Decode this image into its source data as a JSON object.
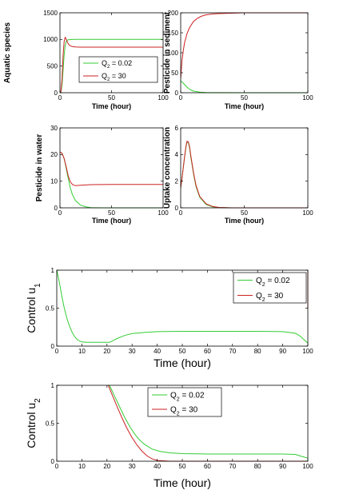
{
  "chart_data": [
    {
      "type": "line",
      "xlabel": "Time (hour)",
      "ylabel": "Aquatic species",
      "xlim": [
        0,
        100
      ],
      "ylim": [
        0,
        1500
      ],
      "xticks": [
        0,
        50,
        100
      ],
      "yticks": [
        0,
        500,
        1000,
        1500
      ],
      "xticklabels": [
        "0",
        "50",
        "100"
      ],
      "yticklabels": [
        "0",
        "500",
        "1000",
        "1500"
      ],
      "grid": false,
      "legend": {
        "placement": "center-right",
        "entries": [
          {
            "base": "Q",
            "sub": "2",
            "rest": " = 0.02",
            "color": "#33cc33"
          },
          {
            "base": "Q",
            "sub": "2",
            "rest": " = 30",
            "color": "#cc2222"
          }
        ]
      },
      "series": [
        {
          "color": "#33cc33",
          "x": [
            0,
            1,
            2,
            3,
            4,
            5,
            6,
            7,
            8,
            9,
            10,
            12,
            15,
            20,
            30,
            50,
            100
          ],
          "y": [
            0,
            20,
            150,
            420,
            700,
            880,
            960,
            985,
            993,
            996,
            998,
            999,
            1000,
            1000,
            1000,
            1000,
            1000
          ]
        },
        {
          "color": "#cc2222",
          "x": [
            0,
            1,
            2,
            3,
            4,
            5,
            6,
            7,
            8,
            9,
            10,
            12,
            15,
            20,
            30,
            50,
            100
          ],
          "y": [
            0,
            30,
            250,
            700,
            960,
            1040,
            1010,
            960,
            920,
            895,
            880,
            865,
            858,
            855,
            855,
            855,
            855
          ]
        }
      ]
    },
    {
      "type": "line",
      "xlabel": "Time (hour)",
      "ylabel": "Pesticide in sediment",
      "xlim": [
        0,
        100
      ],
      "ylim": [
        0,
        200
      ],
      "xticks": [
        0,
        50,
        100
      ],
      "yticks": [
        0,
        50,
        100,
        150,
        200
      ],
      "xticklabels": [
        "0",
        "50",
        "100"
      ],
      "yticklabels": [
        "0",
        "50",
        "100",
        "150",
        "200"
      ],
      "grid": false,
      "series": [
        {
          "color": "#33cc33",
          "x": [
            0,
            2,
            4,
            6,
            8,
            10,
            15,
            20,
            30,
            50,
            100
          ],
          "y": [
            30,
            24,
            17,
            11,
            7,
            4,
            1.5,
            0.5,
            0.2,
            0,
            0
          ]
        },
        {
          "color": "#cc2222",
          "x": [
            0,
            1,
            2,
            3,
            5,
            7,
            10,
            13,
            16,
            20,
            25,
            30,
            40,
            50,
            100
          ],
          "y": [
            35,
            80,
            105,
            125,
            148,
            163,
            178,
            186,
            191,
            195,
            197,
            198,
            199,
            200,
            200
          ]
        }
      ]
    },
    {
      "type": "line",
      "xlabel": "Time (hour)",
      "ylabel": "Pesticide in water",
      "xlim": [
        0,
        100
      ],
      "ylim": [
        0,
        30
      ],
      "xticks": [
        0,
        50,
        100
      ],
      "yticks": [
        0,
        10,
        20,
        30
      ],
      "xticklabels": [
        "0",
        "50",
        "100"
      ],
      "yticklabels": [
        "0",
        "10",
        "20",
        "30"
      ],
      "grid": false,
      "series": [
        {
          "color": "#33cc33",
          "x": [
            0,
            2,
            4,
            6,
            8,
            10,
            12,
            15,
            20,
            25,
            30,
            40,
            100
          ],
          "y": [
            21,
            20.5,
            18.5,
            15,
            11,
            7.5,
            5,
            2.8,
            1,
            0.4,
            0.1,
            0,
            0
          ]
        },
        {
          "color": "#cc2222",
          "x": [
            0,
            2,
            4,
            6,
            8,
            10,
            12,
            15,
            20,
            30,
            50,
            100
          ],
          "y": [
            21,
            20.5,
            18.5,
            15.5,
            12,
            9.8,
            8.8,
            8.3,
            8.5,
            8.7,
            8.8,
            8.8
          ]
        }
      ]
    },
    {
      "type": "line",
      "xlabel": "Time (hour)",
      "ylabel": "Uptake concentration",
      "xlim": [
        0,
        100
      ],
      "ylim": [
        0,
        6
      ],
      "xticks": [
        0,
        50,
        100
      ],
      "yticks": [
        0,
        2,
        4,
        6
      ],
      "xticklabels": [
        "0",
        "50",
        "100"
      ],
      "yticklabels": [
        "0",
        "2",
        "4",
        "6"
      ],
      "grid": false,
      "series": [
        {
          "color": "#33cc33",
          "x": [
            0,
            1,
            2,
            3,
            4,
            5,
            6,
            7,
            8,
            10,
            12,
            15,
            20,
            25,
            30,
            40,
            100
          ],
          "y": [
            1.5,
            2.2,
            3,
            3.8,
            4.5,
            4.95,
            4.9,
            4.5,
            3.8,
            2.6,
            1.6,
            0.8,
            0.25,
            0.08,
            0.02,
            0,
            0
          ]
        },
        {
          "color": "#cc2222",
          "x": [
            0,
            1,
            2,
            3,
            4,
            5,
            6,
            7,
            8,
            10,
            12,
            15,
            20,
            25,
            30,
            40,
            100
          ],
          "y": [
            1.5,
            2.2,
            3,
            3.8,
            4.55,
            5,
            4.95,
            4.6,
            3.9,
            2.7,
            1.7,
            0.85,
            0.3,
            0.1,
            0.03,
            0,
            0
          ]
        }
      ]
    },
    {
      "type": "line",
      "xlabel": "Time (hour)",
      "ylabel": "Control u",
      "ylabel_sub": "1",
      "xlim": [
        0,
        100
      ],
      "ylim": [
        0,
        1
      ],
      "xticks": [
        0,
        10,
        20,
        30,
        40,
        50,
        60,
        70,
        80,
        90,
        100
      ],
      "yticks": [
        0,
        0.5,
        1
      ],
      "xticklabels": [
        "0",
        "10",
        "20",
        "30",
        "40",
        "50",
        "60",
        "70",
        "80",
        "90",
        "100"
      ],
      "yticklabels": [
        "0",
        "0.5",
        "1"
      ],
      "grid": false,
      "legend": {
        "placement": "top-right",
        "entries": [
          {
            "base": "Q",
            "sub": "2",
            "rest": " = 0.02",
            "color": "#33cc33"
          },
          {
            "base": "Q",
            "sub": "2",
            "rest": " = 30",
            "color": "#cc2222"
          }
        ]
      },
      "series": [
        {
          "color": "#33cc33",
          "x": [
            0,
            1,
            2,
            3,
            4,
            5,
            6,
            7,
            8,
            9,
            10,
            12,
            15,
            18,
            21,
            24,
            27,
            30,
            35,
            40,
            50,
            60,
            70,
            80,
            90,
            95,
            97,
            99,
            100
          ],
          "y": [
            1,
            0.85,
            0.66,
            0.5,
            0.37,
            0.27,
            0.19,
            0.13,
            0.09,
            0.07,
            0.055,
            0.05,
            0.05,
            0.05,
            0.05,
            0.1,
            0.14,
            0.165,
            0.18,
            0.19,
            0.195,
            0.195,
            0.195,
            0.195,
            0.19,
            0.17,
            0.13,
            0.07,
            0.04
          ]
        },
        {
          "color": "#cc2222",
          "x": [
            99.8,
            100,
            100
          ],
          "y": [
            1,
            1,
            0.5
          ]
        }
      ]
    },
    {
      "type": "line",
      "xlabel": "Time (hour)",
      "ylabel": "Control u",
      "ylabel_sub": "2",
      "xlim": [
        0,
        100
      ],
      "ylim": [
        0,
        1
      ],
      "xticks": [
        0,
        10,
        20,
        30,
        40,
        50,
        60,
        70,
        80,
        90,
        100
      ],
      "yticks": [
        0,
        0.5,
        1
      ],
      "xticklabels": [
        "0",
        "10",
        "20",
        "30",
        "40",
        "50",
        "60",
        "70",
        "80",
        "90",
        "100"
      ],
      "yticklabels": [
        "0",
        "0.5",
        "1"
      ],
      "grid": false,
      "legend": {
        "placement": "top-center",
        "entries": [
          {
            "base": "Q",
            "sub": "2",
            "rest": " = 0.02",
            "color": "#33cc33"
          },
          {
            "base": "Q",
            "sub": "2",
            "rest": " = 30",
            "color": "#cc2222"
          }
        ]
      },
      "series": [
        {
          "color": "#33cc33",
          "x": [
            21,
            23,
            25,
            27,
            29,
            31,
            33,
            35,
            38,
            41,
            45,
            50,
            60,
            70,
            80,
            90,
            95,
            97,
            100
          ],
          "y": [
            1,
            0.86,
            0.72,
            0.58,
            0.46,
            0.36,
            0.28,
            0.22,
            0.16,
            0.13,
            0.11,
            0.1,
            0.095,
            0.095,
            0.095,
            0.095,
            0.09,
            0.07,
            0.04
          ]
        },
        {
          "color": "#cc2222",
          "x": [
            20.5,
            22,
            24,
            26,
            28,
            30,
            32,
            34,
            36,
            38,
            40,
            45,
            50,
            100
          ],
          "y": [
            1,
            0.88,
            0.72,
            0.57,
            0.43,
            0.31,
            0.21,
            0.13,
            0.07,
            0.03,
            0.01,
            0,
            0,
            0
          ]
        }
      ]
    }
  ]
}
